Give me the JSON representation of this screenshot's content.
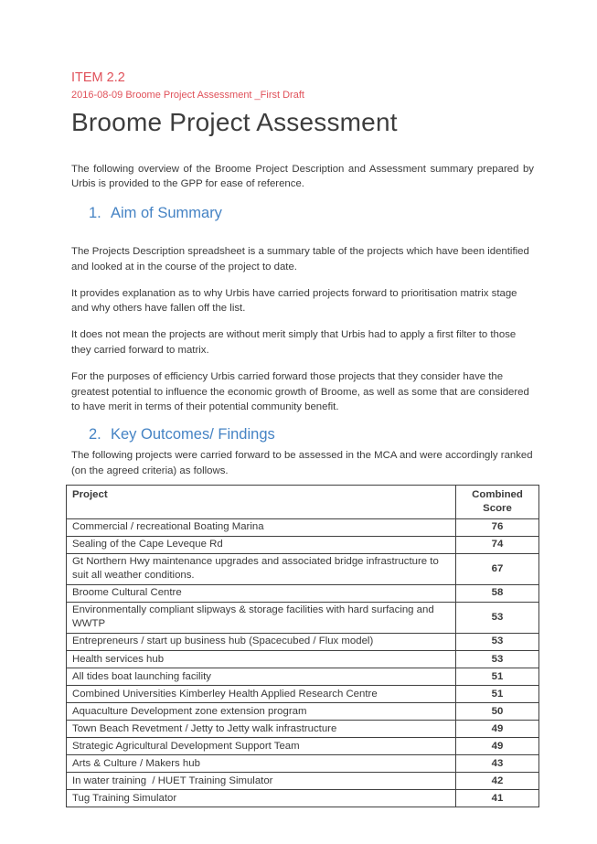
{
  "header": {
    "item_label": "ITEM 2.2",
    "doc_ref": "2016-08-09 Broome Project Assessment _First Draft",
    "title": "Broome Project Assessment"
  },
  "intro": "The following overview of the Broome Project Description and Assessment summary prepared by Urbis is provided to the GPP for ease of reference.",
  "section1": {
    "number": "1.",
    "title": "Aim of Summary",
    "paragraphs": [
      "The Projects Description spreadsheet is a summary table of the projects which have been identified and looked at in the course of the project to date.",
      "It provides explanation as to why Urbis have carried projects forward to prioritisation matrix stage and why others have fallen off the list.",
      "It does not mean the projects are without merit simply that Urbis had to apply a first filter to those they carried forward to matrix.",
      "For the purposes of efficiency Urbis carried forward those projects that they consider have the greatest potential to influence the economic growth of Broome, as well as some that are considered to have merit in terms of their potential community benefit."
    ]
  },
  "section2": {
    "number": "2.",
    "title": "Key Outcomes/ Findings",
    "intro": "The following projects were carried forward to be assessed in the MCA and were accordingly ranked (on the agreed criteria) as follows."
  },
  "table": {
    "headers": {
      "project": "Project",
      "score": "Combined Score"
    },
    "rows": [
      {
        "project": "Commercial / recreational Boating Marina",
        "score": "76"
      },
      {
        "project": "Sealing of the Cape Leveque Rd",
        "score": "74"
      },
      {
        "project": "Gt Northern Hwy maintenance upgrades and associated bridge infrastructure to suit all weather conditions.",
        "score": "67"
      },
      {
        "project": "Broome Cultural Centre",
        "score": "58"
      },
      {
        "project": "Environmentally compliant slipways & storage facilities with hard surfacing and WWTP",
        "score": "53"
      },
      {
        "project": "Entrepreneurs / start up business hub (Spacecubed / Flux model)",
        "score": "53"
      },
      {
        "project": "Health services hub",
        "score": "53"
      },
      {
        "project": "All tides boat launching facility",
        "score": "51"
      },
      {
        "project": "Combined Universities Kimberley Health Applied Research Centre",
        "score": "51"
      },
      {
        "project": "Aquaculture Development zone extension program",
        "score": "50"
      },
      {
        "project": "Town Beach Revetment / Jetty to Jetty walk infrastructure",
        "score": "49"
      },
      {
        "project": "Strategic Agricultural Development Support Team",
        "score": "49"
      },
      {
        "project": "Arts & Culture / Makers hub",
        "score": "43"
      },
      {
        "project": "In water training  / HUET Training Simulator",
        "score": "42"
      },
      {
        "project": "Tug Training Simulator",
        "score": "41"
      }
    ]
  },
  "colors": {
    "accent_red": "#e0515a",
    "heading_blue": "#4583c4",
    "body_text": "#3a3a3a",
    "table_border": "#404040"
  }
}
